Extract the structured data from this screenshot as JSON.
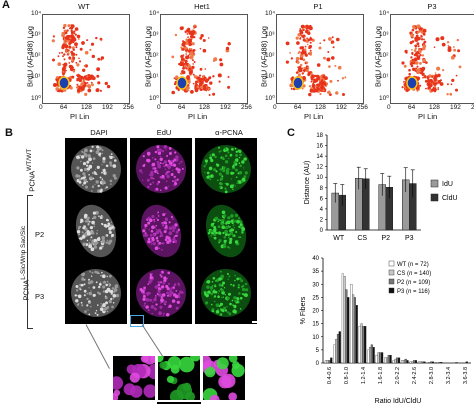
{
  "panel_a": {
    "label": "A",
    "titles": [
      "WT",
      "Het1",
      "P1",
      "P3"
    ],
    "y_axis_label": "BrdU (AF488) Log",
    "x_axis_label": "PI Lin",
    "y_ticks": [
      "10⁴",
      "10³",
      "10²",
      "10¹",
      "10⁰"
    ],
    "x_ticks": [
      "0",
      "64",
      "128",
      "192",
      "256"
    ]
  },
  "panel_b": {
    "label": "B",
    "columns": [
      "DAPI",
      "EdU",
      "α-PCNA"
    ],
    "row_wt": "PCNA",
    "row_wt_sup": "WT/WT",
    "row_p2": "P2",
    "row_p3": "P3",
    "row_mut": "PCNA",
    "row_mut_sup": "L-Sic/Wnp Sac/Sic"
  },
  "panel_c": {
    "label": "C",
    "chart_data": [
      {
        "type": "bar",
        "ylabel": "Distance (AU)",
        "categories": [
          "WT",
          "CS",
          "P2",
          "P3"
        ],
        "series": [
          {
            "name": "IdU",
            "values": [
              7.0,
              9.8,
              8.6,
              9.5
            ],
            "errors": [
              1.8,
              2.1,
              2.1,
              2.3
            ]
          },
          {
            "name": "CldU",
            "values": [
              6.6,
              9.7,
              8.1,
              8.8
            ],
            "errors": [
              2.0,
              1.9,
              2.1,
              2.6
            ]
          }
        ],
        "ylim": [
          0,
          18
        ],
        "y_ticks": [
          "0",
          "2",
          "4",
          "6",
          "8",
          "10",
          "12",
          "14",
          "16",
          "18"
        ],
        "legend": "right",
        "colors": [
          "#9a9a9a",
          "#333333"
        ]
      },
      {
        "type": "bar",
        "ylabel": "% Fibers",
        "xlabel": "Ratio IdU/CldU",
        "categories": [
          "0.4-0.6",
          "0.6-0.8",
          "0.8-1.0",
          "1.0-1.2",
          "1.2-1.4",
          "1.4-1.6",
          "1.6-1.8",
          "1.8-2.0",
          "2.0-2.2",
          "2.2-2.4",
          "2.4-2.6",
          "2.6-2.8",
          "2.8-3.0",
          "3.0-3.2",
          "3.2-3.4",
          "3.4-3.6",
          "3.6-3.8"
        ],
        "x_tick_labels": [
          "0.4-0.6",
          "0.8-1.0",
          "1.2-1.4",
          "1.6-1.8",
          "2.0-2.2",
          "2.4-2.6",
          "2.8-3.0",
          "3.2-3.4",
          "3.6-3.8"
        ],
        "series": [
          {
            "name": "WT",
            "n": "72",
            "values": [
              1,
              7,
              34,
              30,
              14,
              5,
              3,
              2,
              1,
              1,
              0.5,
              0.5,
              0,
              0.3,
              0,
              0,
              0
            ]
          },
          {
            "name": "CS",
            "n": "140",
            "values": [
              1,
              9,
              33,
              26,
              15,
              6,
              4,
              2,
              1.5,
              1,
              0.5,
              0.5,
              0.3,
              0,
              0,
              0,
              0
            ]
          },
          {
            "name": "P2",
            "n": "109",
            "values": [
              1,
              11,
              28,
              25,
              14,
              7,
              4,
              3,
              2,
              1.5,
              1,
              0.5,
              0.5,
              0.3,
              0,
              0.3,
              0
            ]
          },
          {
            "name": "P3",
            "n": "116",
            "values": [
              2,
              12,
              25,
              22,
              14,
              6,
              4,
              3,
              2,
              1,
              1,
              0.5,
              0.5,
              0.3,
              0,
              0,
              0.5
            ]
          }
        ],
        "ylim": [
          0,
          40
        ],
        "y_ticks": [
          "0",
          "5",
          "10",
          "15",
          "20",
          "25",
          "30",
          "35",
          "40"
        ],
        "legend": "top-right",
        "legend_n": "n",
        "colors": [
          "#ffffff",
          "#c8c8c8",
          "#777777",
          "#111111"
        ]
      }
    ]
  }
}
